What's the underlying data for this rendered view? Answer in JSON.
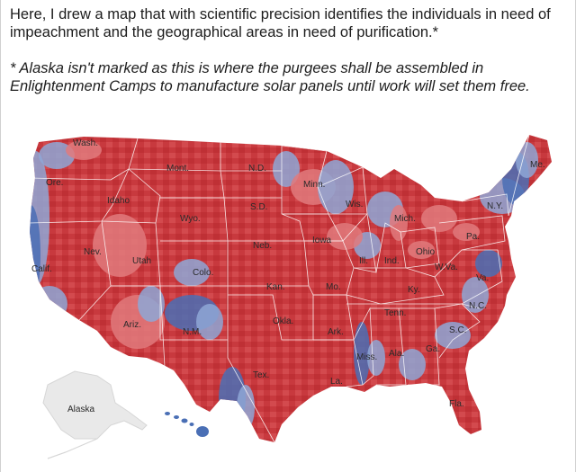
{
  "post": {
    "text": "Here, I drew a map that with scientific precision identifies the individuals in need of impeachment and the geographical areas in need of purification.*",
    "footnote": "* Alaska isn't marked as this is where the purgees shall be assembled in Enlightenment Camps to manufacture solar panels until work will set them free."
  },
  "map": {
    "colors": {
      "red": "#c8393e",
      "light_red": "#e07a7c",
      "blue": "#4a6fb5",
      "light_blue": "#8ea7d6",
      "alaska": "#e9e9e9"
    },
    "labels": {
      "wash": "Wash.",
      "ore": "Ore.",
      "calif": "Calif.",
      "nev": "Nev.",
      "idaho": "Idaho",
      "mont": "Mont.",
      "wyo": "Wyo.",
      "utah": "Utah",
      "ariz": "Ariz.",
      "colo": "Colo.",
      "nm": "N.M.",
      "nd": "N.D.",
      "sd": "S.D.",
      "neb": "Neb.",
      "kan": "Kan.",
      "okla": "Okla.",
      "tex": "Tex.",
      "minn": "Minn.",
      "iowa": "Iowa",
      "mo": "Mo.",
      "ark": "Ark.",
      "la": "La.",
      "wis": "Wis.",
      "ill": "Ill.",
      "mich": "Mich.",
      "ind": "Ind.",
      "ohio": "Ohio",
      "ky": "Ky.",
      "tenn": "Tenn.",
      "miss": "Miss.",
      "ala": "Ala.",
      "ga": "Ga.",
      "fla": "Fla.",
      "sc": "S.C.",
      "nc": "N.C.",
      "va": "Va.",
      "wva": "W.Va.",
      "pa": "Pa.",
      "ny": "N.Y.",
      "me": "Me.",
      "alaska": "Alaska"
    }
  }
}
